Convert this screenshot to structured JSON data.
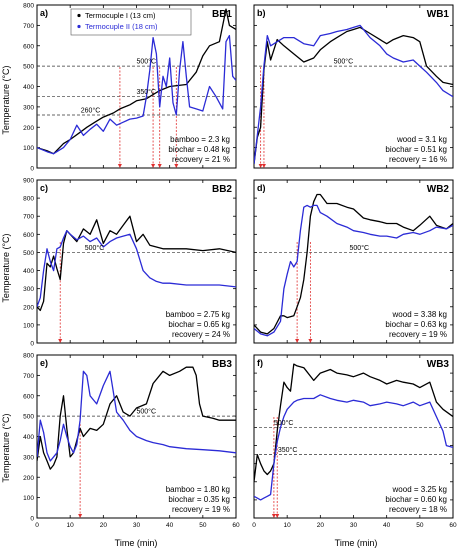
{
  "figure": {
    "ylabel": "Temperature (°C)",
    "xlabel": "Time (min)",
    "legend": [
      {
        "name": "Termocuple I (13 cm)",
        "color": "#000000",
        "marker": "dot"
      },
      {
        "name": "Termocuple II (18 cm)",
        "color": "#2b2bd6",
        "marker": "dot"
      }
    ],
    "colors": {
      "series1": "#000000",
      "series2": "#2b2bd6",
      "ignition_marker": "#e03030",
      "reference_line": "#333333"
    }
  },
  "chart_data": [
    {
      "panel": "a)",
      "title": "BB1",
      "type": "line",
      "xlim": [
        0,
        60
      ],
      "ylim": [
        0,
        800
      ],
      "xticks": [
        0,
        10,
        20,
        30,
        40,
        50,
        60
      ],
      "yticks": [
        0,
        100,
        200,
        300,
        400,
        500,
        600,
        700,
        800
      ],
      "show_x_ticklabels": false,
      "show_y_ticklabels": true,
      "reference_lines": [
        {
          "y": 500,
          "label": "500°C"
        },
        {
          "y": 350,
          "label": "350°C"
        },
        {
          "y": 260,
          "label": "260°C"
        }
      ],
      "ignition_markers": [
        25,
        35,
        37,
        42
      ],
      "annotation": [
        "bamboo = 2.3 kg",
        "biochar = 0.48 kg",
        "recovery = 21 %"
      ],
      "legend": true,
      "series": [
        {
          "name": "Termocuple I (13 cm)",
          "x": [
            0,
            3,
            5,
            8,
            10,
            13,
            15,
            18,
            20,
            23,
            25,
            28,
            30,
            33,
            35,
            37,
            40,
            45,
            48,
            50,
            52,
            55,
            57,
            58,
            60
          ],
          "y": [
            100,
            85,
            70,
            120,
            140,
            175,
            200,
            230,
            250,
            270,
            290,
            310,
            330,
            340,
            360,
            380,
            400,
            410,
            470,
            550,
            600,
            620,
            780,
            700,
            680
          ]
        },
        {
          "name": "Termocuple II (18 cm)",
          "x": [
            0,
            3,
            5,
            8,
            10,
            12,
            14,
            16,
            18,
            20,
            22,
            24,
            26,
            28,
            30,
            32,
            33,
            34,
            35,
            36,
            37,
            38,
            39,
            40,
            41,
            42,
            43,
            44,
            45,
            46,
            48,
            50,
            52,
            54,
            56,
            57,
            58,
            59,
            60
          ],
          "y": [
            100,
            80,
            70,
            100,
            140,
            210,
            160,
            190,
            215,
            180,
            240,
            210,
            225,
            240,
            245,
            255,
            350,
            480,
            640,
            560,
            300,
            450,
            400,
            540,
            320,
            260,
            480,
            620,
            450,
            300,
            290,
            280,
            400,
            350,
            290,
            620,
            650,
            450,
            430
          ]
        }
      ]
    },
    {
      "panel": "b)",
      "title": "WB1",
      "type": "line",
      "xlim": [
        0,
        60
      ],
      "ylim": [
        0,
        800
      ],
      "xticks": [
        0,
        10,
        20,
        30,
        40,
        50,
        60
      ],
      "yticks": [
        0,
        100,
        200,
        300,
        400,
        500,
        600,
        700,
        800
      ],
      "show_x_ticklabels": false,
      "show_y_ticklabels": false,
      "reference_lines": [
        {
          "y": 500,
          "label": "500°C"
        }
      ],
      "ignition_markers": [
        2,
        3
      ],
      "annotation": [
        "wood = 3.1 kg",
        "biochar = 0.51 kg",
        "recovery = 16 %"
      ],
      "series": [
        {
          "name": "Termocuple I (13 cm)",
          "x": [
            0,
            1,
            2,
            3,
            4,
            5,
            7,
            9,
            12,
            15,
            18,
            20,
            23,
            25,
            28,
            30,
            32,
            35,
            38,
            40,
            42,
            45,
            48,
            50,
            52,
            55,
            57,
            60
          ],
          "y": [
            20,
            150,
            200,
            480,
            620,
            530,
            630,
            600,
            560,
            520,
            540,
            580,
            620,
            640,
            670,
            680,
            690,
            660,
            630,
            610,
            630,
            650,
            640,
            620,
            500,
            450,
            420,
            410
          ]
        },
        {
          "name": "Termocuple II (18 cm)",
          "x": [
            0,
            1,
            2,
            3,
            4,
            5,
            7,
            9,
            12,
            15,
            18,
            20,
            23,
            25,
            28,
            30,
            32,
            35,
            38,
            40,
            42,
            45,
            48,
            50,
            52,
            55,
            57,
            60
          ],
          "y": [
            20,
            160,
            300,
            500,
            650,
            600,
            620,
            640,
            640,
            610,
            600,
            650,
            660,
            670,
            680,
            690,
            700,
            640,
            600,
            560,
            540,
            520,
            530,
            500,
            470,
            420,
            380,
            350
          ]
        }
      ]
    },
    {
      "panel": "c)",
      "title": "BB2",
      "type": "line",
      "xlim": [
        0,
        60
      ],
      "ylim": [
        0,
        900
      ],
      "xticks": [
        0,
        10,
        20,
        30,
        40,
        50,
        60
      ],
      "yticks": [
        0,
        100,
        200,
        300,
        400,
        500,
        600,
        700,
        800,
        900
      ],
      "show_x_ticklabels": false,
      "show_y_ticklabels": true,
      "reference_lines": [
        {
          "y": 500,
          "label": "500°C"
        }
      ],
      "ignition_markers": [
        7
      ],
      "annotation": [
        "bamboo = 2.75 kg",
        "biochar = 0.65 kg",
        "recovery = 24 %"
      ],
      "series": [
        {
          "name": "Termocuple I (13 cm)",
          "x": [
            0,
            1,
            2,
            3,
            4,
            5,
            6,
            7,
            8,
            9,
            10,
            12,
            14,
            16,
            18,
            20,
            22,
            24,
            26,
            28,
            30,
            32,
            34,
            36,
            38,
            40,
            45,
            50,
            55,
            60
          ],
          "y": [
            200,
            180,
            230,
            440,
            420,
            480,
            410,
            350,
            550,
            620,
            600,
            560,
            630,
            600,
            680,
            550,
            620,
            600,
            650,
            700,
            560,
            600,
            540,
            530,
            520,
            520,
            520,
            510,
            520,
            500
          ]
        },
        {
          "name": "Termocuple II (18 cm)",
          "x": [
            0,
            1,
            2,
            3,
            4,
            5,
            6,
            7,
            8,
            9,
            10,
            12,
            14,
            16,
            18,
            20,
            22,
            24,
            26,
            28,
            30,
            32,
            34,
            36,
            38,
            40,
            45,
            50,
            55,
            60
          ],
          "y": [
            200,
            250,
            400,
            520,
            450,
            400,
            520,
            530,
            580,
            620,
            600,
            570,
            590,
            560,
            580,
            530,
            560,
            580,
            590,
            600,
            520,
            400,
            360,
            340,
            330,
            330,
            320,
            320,
            320,
            310
          ]
        }
      ]
    },
    {
      "panel": "d)",
      "title": "WB2",
      "type": "line",
      "xlim": [
        0,
        60
      ],
      "ylim": [
        0,
        900
      ],
      "xticks": [
        0,
        10,
        20,
        30,
        40,
        50,
        60
      ],
      "yticks": [
        0,
        100,
        200,
        300,
        400,
        500,
        600,
        700,
        800,
        900
      ],
      "show_x_ticklabels": false,
      "show_y_ticklabels": false,
      "reference_lines": [
        {
          "y": 500,
          "label": "500°C"
        }
      ],
      "ignition_markers": [
        13,
        17
      ],
      "annotation": [
        "wood = 3.38 kg",
        "biochar = 0.63 kg",
        "recovery = 19 %"
      ],
      "series": [
        {
          "name": "Termocuple I (13 cm)",
          "x": [
            0,
            2,
            4,
            6,
            8,
            9,
            10,
            12,
            13,
            14,
            15,
            16,
            17,
            18,
            19,
            20,
            22,
            25,
            28,
            30,
            33,
            35,
            38,
            40,
            43,
            45,
            48,
            50,
            53,
            55,
            58,
            60
          ],
          "y": [
            100,
            60,
            50,
            80,
            150,
            150,
            140,
            150,
            200,
            250,
            350,
            500,
            700,
            780,
            820,
            820,
            770,
            770,
            750,
            740,
            690,
            680,
            670,
            660,
            660,
            640,
            620,
            650,
            700,
            650,
            630,
            660
          ]
        },
        {
          "name": "Termocuple II (18 cm)",
          "x": [
            0,
            2,
            4,
            6,
            8,
            9,
            10,
            11,
            12,
            13,
            14,
            15,
            16,
            17,
            18,
            19,
            20,
            22,
            25,
            28,
            30,
            33,
            35,
            38,
            40,
            43,
            45,
            48,
            50,
            53,
            55,
            58,
            60
          ],
          "y": [
            80,
            50,
            40,
            60,
            120,
            300,
            380,
            450,
            420,
            450,
            620,
            750,
            760,
            750,
            760,
            760,
            720,
            700,
            660,
            640,
            620,
            610,
            600,
            590,
            590,
            580,
            600,
            610,
            600,
            620,
            640,
            630,
            650
          ]
        }
      ]
    },
    {
      "panel": "e)",
      "title": "BB3",
      "type": "line",
      "xlim": [
        0,
        60
      ],
      "ylim": [
        0,
        800
      ],
      "xticks": [
        0,
        10,
        20,
        30,
        40,
        50,
        60
      ],
      "yticks": [
        0,
        100,
        200,
        300,
        400,
        500,
        600,
        700,
        800
      ],
      "show_x_ticklabels": true,
      "show_y_ticklabels": true,
      "reference_lines": [
        {
          "y": 500,
          "label": "500°C"
        }
      ],
      "ignition_markers": [
        13
      ],
      "annotation": [
        "bamboo = 1.80 kg",
        "biochar = 0.35 kg",
        "recovery = 19 %"
      ],
      "series": [
        {
          "name": "Termocuple I (13 cm)",
          "x": [
            0,
            1,
            2,
            3,
            4,
            5,
            6,
            7,
            8,
            9,
            10,
            11,
            12,
            13,
            14,
            16,
            18,
            20,
            22,
            24,
            26,
            28,
            30,
            33,
            35,
            38,
            40,
            43,
            45,
            47,
            48,
            49,
            50,
            53,
            55,
            58,
            60
          ],
          "y": [
            280,
            400,
            320,
            280,
            240,
            260,
            300,
            500,
            600,
            440,
            300,
            320,
            380,
            440,
            400,
            440,
            430,
            460,
            560,
            600,
            520,
            500,
            540,
            560,
            660,
            720,
            700,
            720,
            740,
            740,
            700,
            560,
            500,
            490,
            480,
            480,
            480
          ]
        },
        {
          "name": "Termocuple II (18 cm)",
          "x": [
            0,
            1,
            2,
            3,
            4,
            5,
            6,
            7,
            8,
            9,
            10,
            11,
            12,
            13,
            14,
            15,
            16,
            18,
            20,
            22,
            24,
            26,
            28,
            30,
            33,
            35,
            38,
            40,
            45,
            50,
            55,
            60
          ],
          "y": [
            300,
            480,
            420,
            320,
            280,
            300,
            320,
            380,
            460,
            400,
            350,
            320,
            360,
            480,
            720,
            700,
            600,
            560,
            650,
            720,
            520,
            480,
            430,
            400,
            380,
            370,
            360,
            350,
            340,
            335,
            330,
            320
          ]
        }
      ]
    },
    {
      "panel": "f)",
      "title": "WB3",
      "type": "line",
      "xlim": [
        0,
        60
      ],
      "ylim": [
        0,
        900
      ],
      "xticks": [
        0,
        10,
        20,
        30,
        40,
        50,
        60
      ],
      "yticks": [
        0,
        100,
        200,
        300,
        400,
        500,
        600,
        700,
        800,
        900
      ],
      "show_x_ticklabels": true,
      "show_y_ticklabels": false,
      "reference_lines": [
        {
          "y": 500,
          "label": "500°C"
        },
        {
          "y": 350,
          "label": "350°C"
        }
      ],
      "ignition_markers": [
        6,
        7
      ],
      "annotation": [
        "wood = 3.25 kg",
        "biochar = 0.60 kg",
        "recovery = 18 %"
      ],
      "series": [
        {
          "name": "Termocuple I (13 cm)",
          "x": [
            0,
            1,
            2,
            3,
            4,
            5,
            6,
            7,
            8,
            9,
            10,
            11,
            12,
            13,
            15,
            18,
            20,
            23,
            25,
            28,
            30,
            33,
            35,
            38,
            40,
            43,
            45,
            48,
            50,
            53,
            55,
            57,
            60
          ],
          "y": [
            200,
            350,
            300,
            260,
            240,
            260,
            300,
            480,
            620,
            750,
            720,
            700,
            850,
            840,
            830,
            760,
            800,
            820,
            800,
            790,
            780,
            800,
            780,
            760,
            740,
            760,
            750,
            740,
            720,
            750,
            640,
            600,
            560
          ]
        },
        {
          "name": "Termocuple II (18 cm)",
          "x": [
            0,
            1,
            2,
            3,
            4,
            5,
            6,
            7,
            8,
            9,
            10,
            11,
            12,
            13,
            15,
            18,
            20,
            23,
            25,
            28,
            30,
            33,
            35,
            38,
            40,
            43,
            45,
            48,
            50,
            53,
            55,
            57,
            58,
            60
          ],
          "y": [
            120,
            110,
            100,
            110,
            120,
            130,
            300,
            420,
            500,
            560,
            600,
            620,
            640,
            650,
            660,
            660,
            680,
            660,
            650,
            640,
            650,
            640,
            620,
            630,
            640,
            630,
            620,
            640,
            620,
            640,
            560,
            480,
            400,
            390
          ]
        }
      ]
    }
  ]
}
